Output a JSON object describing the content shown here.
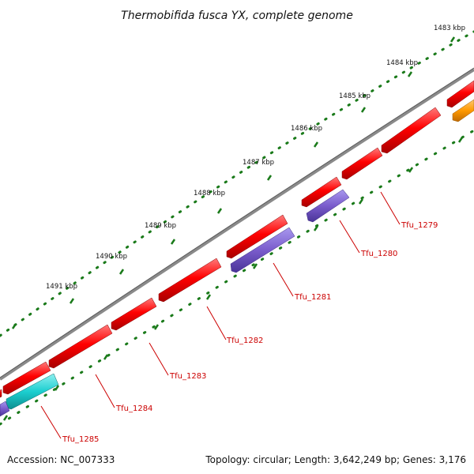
{
  "title": "Thermobifida fusca YX, complete genome",
  "footer": {
    "accession": "Accession: NC_007333",
    "summary": "Topology: circular; Length: 3,642,249 bp; Genes: 3,176"
  },
  "scale_labels": [
    "1483 kbp",
    "1484 kbp",
    "1485 kbp",
    "1486 kbp",
    "1487 kbp",
    "1488 kbp",
    "1489 kbp",
    "1490 kbp",
    "1491 kbp"
  ],
  "gene_labels": [
    "Tfu_1279",
    "Tfu_1280",
    "Tfu_1281",
    "Tfu_1282",
    "Tfu_1283",
    "Tfu_1284",
    "Tfu_1285"
  ],
  "colors": {
    "gene_red": "#ff0000",
    "gene_purple": "#7a5ccc",
    "gene_cyan": "#1ccfd0",
    "gene_orange": "#ff9900",
    "backbone": "#808080",
    "tick_green": "#1a7a1a",
    "label_red": "#cc0000"
  }
}
